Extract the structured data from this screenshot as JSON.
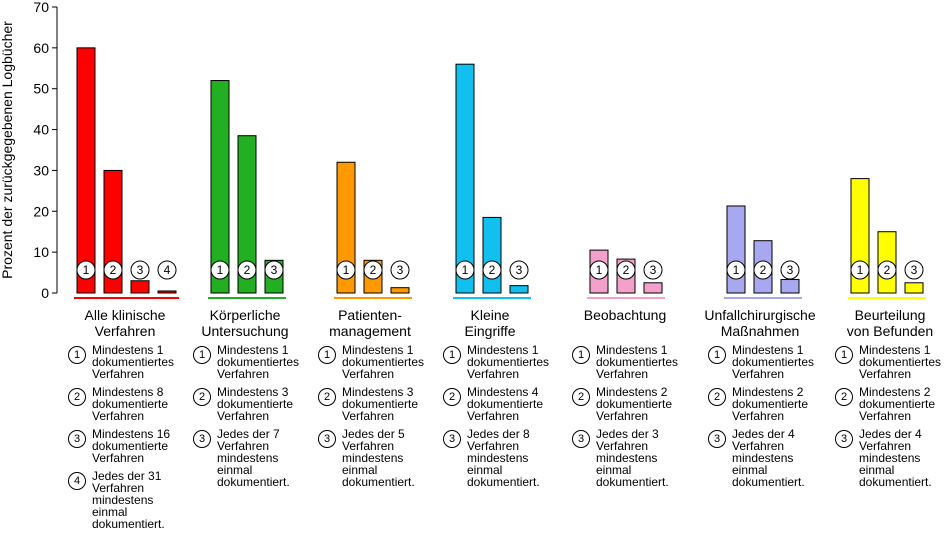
{
  "chart_data": {
    "type": "bar",
    "ylabel": "Prozent der zurückgegebenen Logbücher",
    "ylim": [
      0,
      70
    ],
    "yticks": [
      0,
      10,
      20,
      30,
      40,
      50,
      60,
      70
    ],
    "grid": false,
    "groups": [
      {
        "category": "Alle klinische Verfahren",
        "label_lines": [
          "Alle klinische",
          "Verfahren"
        ],
        "color": "#ff0000",
        "values": [
          60,
          30,
          3,
          0.5
        ],
        "bar_markers": [
          "1",
          "2",
          "3",
          "4"
        ],
        "legend": [
          {
            "marker": "1",
            "lines": [
              "Mindestens 1",
              "dokumentiertes",
              "Verfahren"
            ]
          },
          {
            "marker": "2",
            "lines": [
              "Mindestens 8",
              "dokumentierte",
              "Verfahren"
            ]
          },
          {
            "marker": "3",
            "lines": [
              "Mindestens 16",
              "dokumentierte",
              "Verfahren"
            ]
          },
          {
            "marker": "4",
            "lines": [
              "Jedes der 31",
              "Verfahren",
              "mindestens",
              "einmal",
              "dokumentiert."
            ]
          }
        ]
      },
      {
        "category": "Körperliche Untersuchung",
        "label_lines": [
          "Körperliche",
          "Untersuchung"
        ],
        "color": "#22b022",
        "values": [
          52,
          38.5,
          8
        ],
        "bar_markers": [
          "1",
          "2",
          "3"
        ],
        "legend": [
          {
            "marker": "1",
            "lines": [
              "Mindestens 1",
              "dokumentiertes",
              "Verfahren"
            ]
          },
          {
            "marker": "2",
            "lines": [
              "Mindestens 3",
              "dokumentierte",
              "Verfahren"
            ]
          },
          {
            "marker": "3",
            "lines": [
              "Jedes der 7",
              "Verfahren",
              "mindestens",
              "einmal",
              "dokumentiert."
            ]
          }
        ]
      },
      {
        "category": "Patientenmanagement",
        "label_lines": [
          "Patienten-",
          "management"
        ],
        "color": "#ff9900",
        "values": [
          32,
          8,
          1.3
        ],
        "bar_markers": [
          "1",
          "2",
          "3"
        ],
        "legend": [
          {
            "marker": "1",
            "lines": [
              "Mindestens 1",
              "dokumentiertes",
              "Verfahren"
            ]
          },
          {
            "marker": "2",
            "lines": [
              "Mindestens 3",
              "dokumentierte",
              "Verfahren"
            ]
          },
          {
            "marker": "3",
            "lines": [
              "Jedes der 5",
              "Verfahren",
              "mindestens",
              "einmal",
              "dokumentiert."
            ]
          }
        ]
      },
      {
        "category": "Kleine Eingriffe",
        "label_lines": [
          "Kleine",
          "Eingriffe"
        ],
        "color": "#11c0ee",
        "values": [
          56,
          18.5,
          1.8
        ],
        "bar_markers": [
          "1",
          "2",
          "3"
        ],
        "legend": [
          {
            "marker": "1",
            "lines": [
              "Mindestens 1",
              "dokumentiertes",
              "Verfahren"
            ]
          },
          {
            "marker": "2",
            "lines": [
              "Mindestens 4",
              "dokumentierte",
              "Verfahren"
            ]
          },
          {
            "marker": "3",
            "lines": [
              "Jedes der 8",
              "Verfahren",
              "mindestens",
              "einmal",
              "dokumentiert."
            ]
          }
        ]
      },
      {
        "category": "Beobachtung",
        "label_lines": [
          "Beobachtung"
        ],
        "color": "#f4a0cc",
        "values": [
          10.5,
          8.3,
          2.5
        ],
        "bar_markers": [
          "1",
          "2",
          "3"
        ],
        "legend": [
          {
            "marker": "1",
            "lines": [
              "Mindestens 1",
              "dokumentiertes",
              "Verfahren"
            ]
          },
          {
            "marker": "2",
            "lines": [
              "Mindestens 2",
              "dokumentierte",
              "Verfahren"
            ]
          },
          {
            "marker": "3",
            "lines": [
              "Jedes der 3",
              "Verfahren",
              "mindestens",
              "einmal",
              "dokumentiert."
            ]
          }
        ]
      },
      {
        "category": "Unfallchirurgische Maßnahmen",
        "label_lines": [
          "Unfallchirurgische",
          "Maßnahmen"
        ],
        "color": "#a8a8f0",
        "values": [
          21.3,
          12.8,
          3.3
        ],
        "bar_markers": [
          "1",
          "2",
          "3"
        ],
        "legend": [
          {
            "marker": "1",
            "lines": [
              "Mindestens 1",
              "dokumentiertes",
              "Verfahren"
            ]
          },
          {
            "marker": "2",
            "lines": [
              "Mindestens 2",
              "dokumentierte",
              "Verfahren"
            ]
          },
          {
            "marker": "3",
            "lines": [
              "Jedes der 4",
              "Verfahren",
              "mindestens",
              "einmal",
              "dokumentiert."
            ]
          }
        ]
      },
      {
        "category": "Beurteilung von Befunden",
        "label_lines": [
          "Beurteilung",
          "von Befunden"
        ],
        "color": "#ffff00",
        "values": [
          28,
          15,
          2.5
        ],
        "bar_markers": [
          "1",
          "2",
          "3"
        ],
        "legend": [
          {
            "marker": "1",
            "lines": [
              "Mindestens 1",
              "dokumentiertes",
              "Verfahren"
            ]
          },
          {
            "marker": "2",
            "lines": [
              "Mindestens 2",
              "dokumentierte",
              "Verfahren"
            ]
          },
          {
            "marker": "3",
            "lines": [
              "Jedes der 4",
              "Verfahren",
              "mindestens",
              "einmal",
              "dokumentiert."
            ]
          }
        ]
      }
    ]
  }
}
